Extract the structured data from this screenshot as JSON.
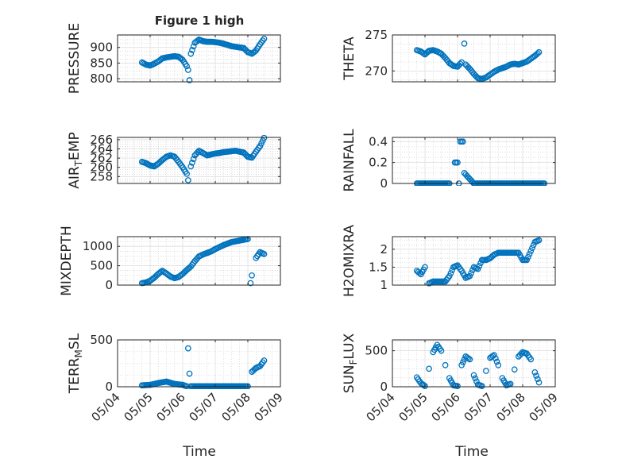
{
  "figure_title": "Figure 1 high",
  "x_axis_label": "Time",
  "x_tick_labels": [
    "05/04",
    "05/05",
    "05/06",
    "05/07",
    "05/08",
    "05/09"
  ],
  "marker_color": "#0072BD",
  "chart_data": [
    {
      "type": "scatter",
      "ylabel": "PRESSURE",
      "ylim": [
        790,
        940
      ],
      "yticks": [
        800,
        850,
        900
      ],
      "x": [
        "05/04 18:00",
        "05/04 21:00",
        "05/05 00:00",
        "05/05 03:00",
        "05/05 06:00",
        "05/05 09:00",
        "05/05 12:00",
        "05/05 15:00",
        "05/05 18:00",
        "05/05 21:00",
        "05/06 00:00",
        "05/06 03:00",
        "05/06 04:00",
        "05/06 05:00",
        "05/06 06:00",
        "05/06 09:00",
        "05/06 12:00",
        "05/06 15:00",
        "05/06 18:00",
        "05/06 21:00",
        "05/07 00:00",
        "05/07 03:00",
        "05/07 06:00",
        "05/07 09:00",
        "05/07 12:00",
        "05/07 15:00",
        "05/07 18:00",
        "05/07 21:00",
        "05/08 00:00",
        "05/08 03:00",
        "05/08 06:00",
        "05/08 09:00",
        "05/08 12:00"
      ],
      "y": [
        852,
        845,
        842,
        848,
        855,
        865,
        868,
        870,
        872,
        870,
        860,
        840,
        828,
        795,
        880,
        915,
        925,
        920,
        918,
        918,
        917,
        915,
        912,
        908,
        904,
        902,
        900,
        898,
        885,
        880,
        890,
        910,
        928
      ]
    },
    {
      "type": "scatter",
      "ylabel": "THETA",
      "ylim": [
        268.5,
        275
      ],
      "yticks": [
        270,
        275
      ],
      "x": [
        "05/04 18:00",
        "05/04 21:00",
        "05/05 00:00",
        "05/05 03:00",
        "05/05 06:00",
        "05/05 09:00",
        "05/05 12:00",
        "05/05 15:00",
        "05/05 18:00",
        "05/05 21:00",
        "05/06 00:00",
        "05/06 03:00",
        "05/06 05:00",
        "05/06 06:00",
        "05/06 09:00",
        "05/06 12:00",
        "05/06 15:00",
        "05/06 18:00",
        "05/06 21:00",
        "05/07 00:00",
        "05/07 03:00",
        "05/07 06:00",
        "05/07 09:00",
        "05/07 12:00",
        "05/07 15:00",
        "05/07 18:00",
        "05/07 21:00",
        "05/08 00:00",
        "05/08 03:00",
        "05/08 06:00",
        "05/08 09:00",
        "05/08 12:00"
      ],
      "y": [
        272.9,
        272.7,
        272.3,
        272.8,
        272.9,
        272.7,
        272.4,
        271.8,
        271.1,
        270.7,
        270.6,
        271.2,
        273.8,
        270.9,
        270.3,
        269.6,
        269.0,
        268.9,
        269.1,
        269.5,
        269.9,
        270.2,
        270.4,
        270.6,
        270.9,
        271.0,
        270.9,
        271.1,
        271.3,
        271.7,
        272.1,
        272.6
      ]
    },
    {
      "type": "scatter",
      "ylabel": "AIR_TEMP",
      "ylim": [
        256.5,
        266.5
      ],
      "yticks": [
        258,
        260,
        262,
        264,
        266
      ],
      "x": [
        "05/04 18:00",
        "05/04 21:00",
        "05/05 00:00",
        "05/05 03:00",
        "05/05 06:00",
        "05/05 09:00",
        "05/05 12:00",
        "05/05 15:00",
        "05/05 18:00",
        "05/05 21:00",
        "05/06 00:00",
        "05/06 03:00",
        "05/06 04:00",
        "05/06 06:00",
        "05/06 09:00",
        "05/06 12:00",
        "05/06 15:00",
        "05/06 18:00",
        "05/06 21:00",
        "05/07 00:00",
        "05/07 03:00",
        "05/07 06:00",
        "05/07 09:00",
        "05/07 12:00",
        "05/07 15:00",
        "05/07 18:00",
        "05/07 21:00",
        "05/08 00:00",
        "05/08 03:00",
        "05/08 06:00",
        "05/08 09:00",
        "05/08 12:00"
      ],
      "y": [
        261.2,
        260.9,
        260.4,
        260.2,
        260.8,
        261.6,
        262.3,
        262.6,
        262.3,
        261.2,
        260.0,
        258.6,
        257.2,
        260.2,
        262.6,
        263.6,
        263.1,
        262.6,
        262.8,
        263.0,
        263.1,
        263.3,
        263.4,
        263.5,
        263.6,
        263.4,
        263.2,
        262.3,
        262.1,
        263.4,
        264.6,
        266.4
      ]
    },
    {
      "type": "scatter",
      "ylabel": "RAINFALL",
      "ylim": [
        0,
        0.44
      ],
      "yticks": [
        0,
        0.2,
        0.4
      ],
      "x": [
        "05/04 18:00",
        "05/05 00:00",
        "05/05 06:00",
        "05/05 12:00",
        "05/05 18:00",
        "05/05 22:00",
        "05/05 23:00",
        "05/06 00:00",
        "05/06 01:00",
        "05/06 02:00",
        "05/06 03:00",
        "05/06 04:00",
        "05/06 05:00",
        "05/06 12:00",
        "05/06 18:00",
        "05/07 00:00",
        "05/07 06:00",
        "05/07 12:00",
        "05/07 18:00",
        "05/08 00:00",
        "05/08 06:00",
        "05/08 12:00",
        "05/08 16:00"
      ],
      "y": [
        0,
        0,
        0,
        0,
        0,
        0.2,
        0.2,
        0.2,
        0,
        0.4,
        0.4,
        0.4,
        0.1,
        0,
        0,
        0,
        0,
        0,
        0,
        0,
        0,
        0,
        0
      ]
    },
    {
      "type": "scatter",
      "ylabel": "MIXDEPTH",
      "ylim": [
        0,
        1250
      ],
      "yticks": [
        0,
        500,
        1000
      ],
      "x": [
        "05/04 18:00",
        "05/04 21:00",
        "05/05 00:00",
        "05/05 03:00",
        "05/05 06:00",
        "05/05 09:00",
        "05/05 12:00",
        "05/05 15:00",
        "05/05 18:00",
        "05/05 21:00",
        "05/06 00:00",
        "05/06 03:00",
        "05/06 06:00",
        "05/06 09:00",
        "05/06 12:00",
        "05/06 15:00",
        "05/06 18:00",
        "05/06 21:00",
        "05/07 00:00",
        "05/07 03:00",
        "05/07 06:00",
        "05/07 09:00",
        "05/07 12:00",
        "05/07 15:00",
        "05/07 18:00",
        "05/07 21:00",
        "05/08 00:00",
        "05/08 02:00",
        "05/08 03:00",
        "05/08 06:00",
        "05/08 09:00",
        "05/08 12:00"
      ],
      "y": [
        50,
        70,
        110,
        190,
        290,
        370,
        300,
        220,
        180,
        210,
        290,
        390,
        480,
        620,
        740,
        790,
        830,
        870,
        930,
        980,
        1030,
        1070,
        1110,
        1130,
        1150,
        1170,
        1190,
        50,
        250,
        700,
        850,
        800
      ]
    },
    {
      "type": "scatter",
      "ylabel": "H2OMIXRA",
      "ylim": [
        1,
        2.35
      ],
      "yticks": [
        1,
        1.5,
        2
      ],
      "x": [
        "05/04 18:00",
        "05/04 21:00",
        "05/05 00:00",
        "05/05 03:00",
        "05/05 06:00",
        "05/05 09:00",
        "05/05 12:00",
        "05/05 15:00",
        "05/05 18:00",
        "05/05 21:00",
        "05/06 00:00",
        "05/06 03:00",
        "05/06 06:00",
        "05/06 09:00",
        "05/06 12:00",
        "05/06 15:00",
        "05/06 18:00",
        "05/06 21:00",
        "05/07 00:00",
        "05/07 03:00",
        "05/07 06:00",
        "05/07 09:00",
        "05/07 12:00",
        "05/07 15:00",
        "05/07 18:00",
        "05/07 21:00",
        "05/08 00:00",
        "05/08 03:00",
        "05/08 06:00",
        "05/08 09:00",
        "05/08 12:00"
      ],
      "y": [
        1.4,
        1.3,
        1.5,
        1.05,
        1.1,
        1.1,
        1.1,
        1.1,
        1.25,
        1.5,
        1.55,
        1.4,
        1.2,
        1.25,
        1.5,
        1.45,
        1.7,
        1.7,
        1.75,
        1.85,
        1.9,
        1.9,
        1.9,
        1.9,
        1.9,
        1.9,
        1.7,
        1.7,
        1.95,
        2.2,
        2.25
      ]
    },
    {
      "type": "scatter",
      "ylabel": "TERR_MSL",
      "ylim": [
        0,
        500
      ],
      "yticks": [
        0,
        500
      ],
      "x": [
        "05/04 18:00",
        "05/05 00:00",
        "05/05 06:00",
        "05/05 12:00",
        "05/05 18:00",
        "05/06 00:00",
        "05/06 03:00",
        "05/06 04:00",
        "05/06 05:00",
        "05/06 06:00",
        "05/06 12:00",
        "05/06 18:00",
        "05/07 00:00",
        "05/07 06:00",
        "05/07 12:00",
        "05/07 18:00",
        "05/08 00:00",
        "05/08 03:00",
        "05/08 06:00",
        "05/08 09:00",
        "05/08 12:00"
      ],
      "y": [
        15,
        20,
        40,
        55,
        30,
        20,
        5,
        410,
        140,
        5,
        5,
        5,
        5,
        5,
        5,
        5,
        5,
        160,
        200,
        220,
        280
      ]
    },
    {
      "type": "scatter",
      "ylabel": "SUN_FLUX",
      "ylim": [
        0,
        650
      ],
      "yticks": [
        0,
        500
      ],
      "x": [
        "05/04 18:00",
        "05/04 21:00",
        "05/05 00:00",
        "05/05 03:00",
        "05/05 06:00",
        "05/05 09:00",
        "05/05 12:00",
        "05/05 15:00",
        "05/05 18:00",
        "05/05 21:00",
        "05/06 00:00",
        "05/06 03:00",
        "05/06 06:00",
        "05/06 09:00",
        "05/06 12:00",
        "05/06 15:00",
        "05/06 18:00",
        "05/06 21:00",
        "05/07 00:00",
        "05/07 03:00",
        "05/07 06:00",
        "05/07 09:00",
        "05/07 12:00",
        "05/07 15:00",
        "05/07 18:00",
        "05/07 21:00",
        "05/08 00:00",
        "05/08 03:00",
        "05/08 06:00",
        "05/08 09:00",
        "05/08 12:00"
      ],
      "y": [
        130,
        50,
        10,
        250,
        480,
        580,
        500,
        300,
        120,
        20,
        10,
        300,
        420,
        380,
        160,
        30,
        10,
        220,
        400,
        440,
        300,
        120,
        20,
        40,
        240,
        420,
        480,
        460,
        380,
        200,
        60
      ]
    }
  ]
}
